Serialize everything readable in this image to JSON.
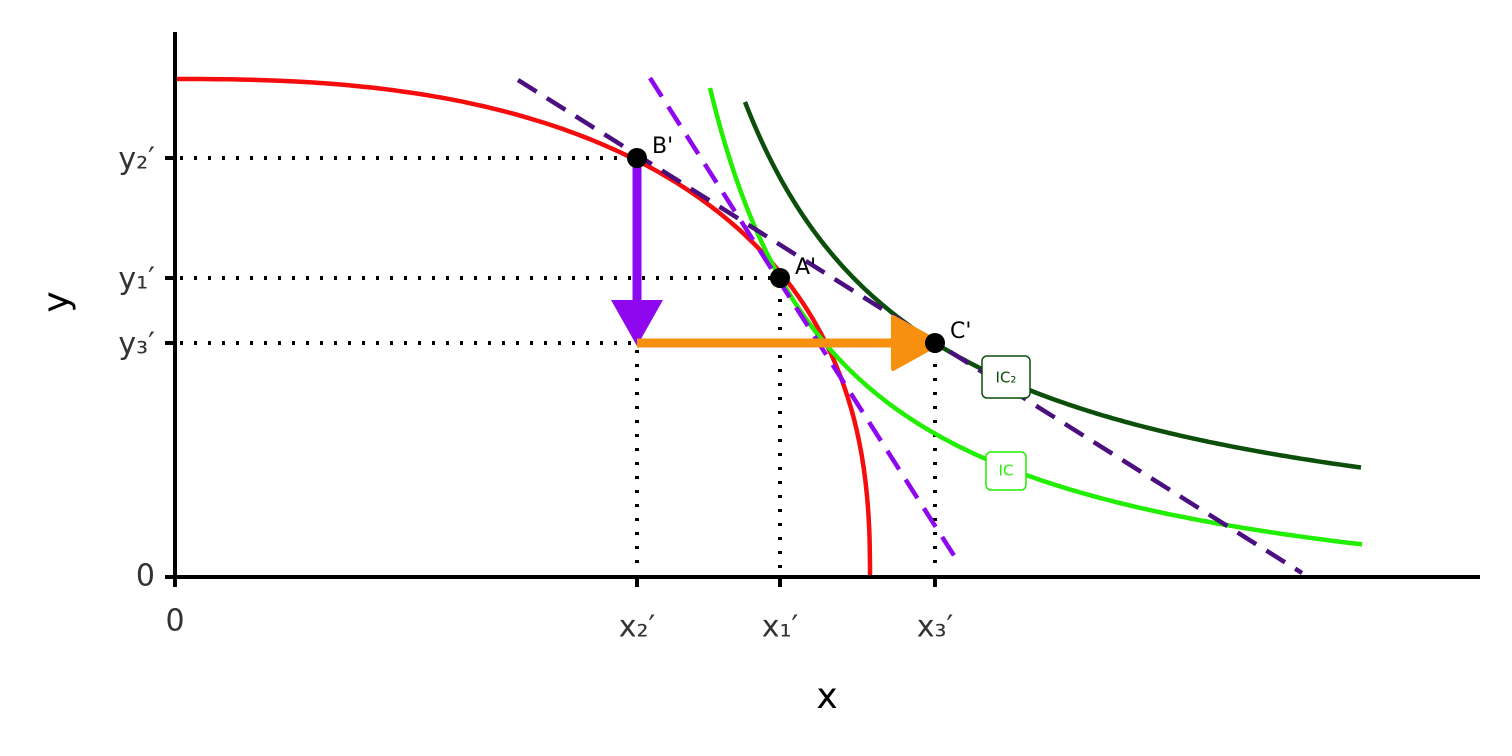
{
  "axes": {
    "x_label": "x",
    "y_label": "y"
  },
  "x_ticks": [
    "0",
    "x₂′",
    "x₁′",
    "x₃′"
  ],
  "y_ticks": [
    "0",
    "y₂′",
    "y₁′",
    "y₃′"
  ],
  "points": [
    "B'",
    "A'",
    "C'"
  ],
  "curve_labels": [
    "IC₂",
    "IC"
  ]
}
